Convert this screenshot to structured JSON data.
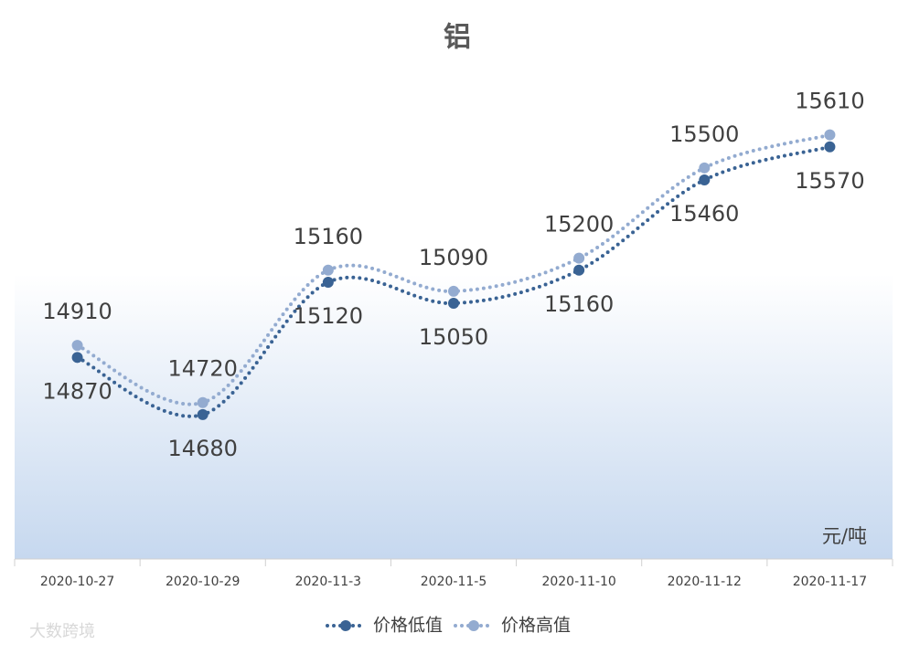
{
  "chart_data": {
    "type": "line",
    "title": "铝",
    "categories": [
      "2020-10-27",
      "2020-10-29",
      "2020-11-3",
      "2020-11-5",
      "2020-11-10",
      "2020-11-12",
      "2020-11-17"
    ],
    "series": [
      {
        "name": "价格低值",
        "color": "#3a6394",
        "values": [
          14870,
          14680,
          15120,
          15050,
          15160,
          15460,
          15570
        ]
      },
      {
        "name": "价格高值",
        "color": "#93abd0",
        "values": [
          14910,
          14720,
          15160,
          15090,
          15200,
          15500,
          15610
        ]
      }
    ],
    "ylim": [
      14200,
      15800
    ],
    "unit_label": "元/吨",
    "watermark": "大数跨境"
  }
}
